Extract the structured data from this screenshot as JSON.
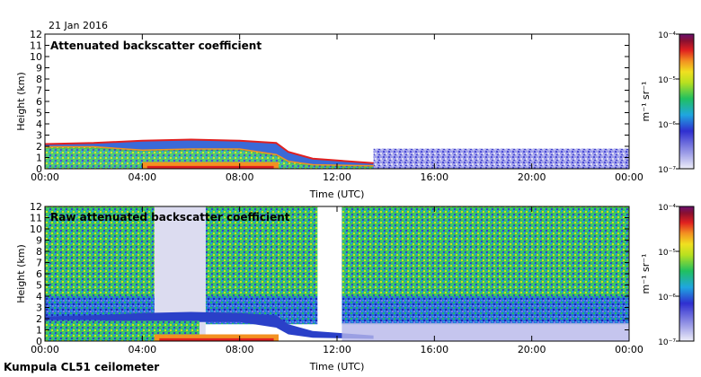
{
  "header": {
    "date": "21 Jan 2016"
  },
  "footer": {
    "instrument": "Kumpula CL51 ceilometer"
  },
  "colors": {
    "background_min": "#e8e8f4",
    "low_noise": "#3b3bd6",
    "mid_noise": "#22a7d8",
    "green": "#2fc13a",
    "yellow": "#f0e020",
    "orange": "#f39121",
    "red": "#e02020",
    "darkred": "#7a1030",
    "purple": "#6a1070"
  },
  "chart_data": [
    {
      "type": "heatmap",
      "title": "Attenuated backscatter coefficient",
      "xlabel": "Time (UTC)",
      "ylabel": "Height (km)",
      "xlim": [
        "00:00",
        "00:00"
      ],
      "x_ticks": [
        "00:00",
        "04:00",
        "08:00",
        "12:00",
        "16:00",
        "20:00",
        "00:00"
      ],
      "ylim": [
        0,
        12
      ],
      "y_ticks": [
        "0",
        "1",
        "2",
        "3",
        "4",
        "5",
        "6",
        "7",
        "8",
        "9",
        "10",
        "11",
        "12"
      ],
      "colorbar": {
        "unit": "m⁻¹ sr⁻¹",
        "scale": "log",
        "range": [
          1e-07,
          0.0001
        ],
        "tick_labels": [
          "10⁻⁴",
          "10⁻⁵",
          "10⁻⁶",
          "10⁻⁷"
        ]
      },
      "features": {
        "cloud_top_km": [
          {
            "hour": 0,
            "km": 2.2
          },
          {
            "hour": 2,
            "km": 2.3
          },
          {
            "hour": 4,
            "km": 2.5
          },
          {
            "hour": 6,
            "km": 2.6
          },
          {
            "hour": 8,
            "km": 2.5
          },
          {
            "hour": 9.5,
            "km": 2.3
          },
          {
            "hour": 10,
            "km": 1.5
          },
          {
            "hour": 11,
            "km": 0.9
          },
          {
            "hour": 13.5,
            "km": 0.5
          }
        ],
        "cloud_base_km": [
          {
            "hour": 0,
            "km": 1.9
          },
          {
            "hour": 2,
            "km": 1.9
          },
          {
            "hour": 4,
            "km": 1.6
          },
          {
            "hour": 6,
            "km": 1.7
          },
          {
            "hour": 8,
            "km": 1.7
          },
          {
            "hour": 9.5,
            "km": 1.2
          },
          {
            "hour": 10,
            "km": 0.6
          },
          {
            "hour": 11,
            "km": 0.3
          },
          {
            "hour": 13.5,
            "km": 0.2
          }
        ],
        "noise_top_after_13h_km": 1.8
      }
    },
    {
      "type": "heatmap",
      "title": "Raw attenuated backscatter coefficient",
      "xlabel": "Time (UTC)",
      "ylabel": "Height (km)",
      "xlim": [
        "00:00",
        "00:00"
      ],
      "x_ticks": [
        "00:00",
        "04:00",
        "08:00",
        "12:00",
        "16:00",
        "20:00",
        "00:00"
      ],
      "ylim": [
        0,
        12
      ],
      "y_ticks": [
        "0",
        "1",
        "2",
        "3",
        "4",
        "5",
        "6",
        "7",
        "8",
        "9",
        "10",
        "11",
        "12"
      ],
      "colorbar": {
        "unit": "m⁻¹ sr⁻¹",
        "scale": "log",
        "range": [
          1e-07,
          0.0001
        ],
        "tick_labels": [
          "10⁻⁴",
          "10⁻⁵",
          "10⁻⁶",
          "10⁻⁷"
        ]
      },
      "features": {
        "high_noise_bands_hours": [
          [
            0,
            4.5
          ],
          [
            6.6,
            11.2
          ],
          [
            12.2,
            24
          ]
        ],
        "low_signal_gap_hours": [
          4.5,
          6.6
        ]
      }
    }
  ]
}
